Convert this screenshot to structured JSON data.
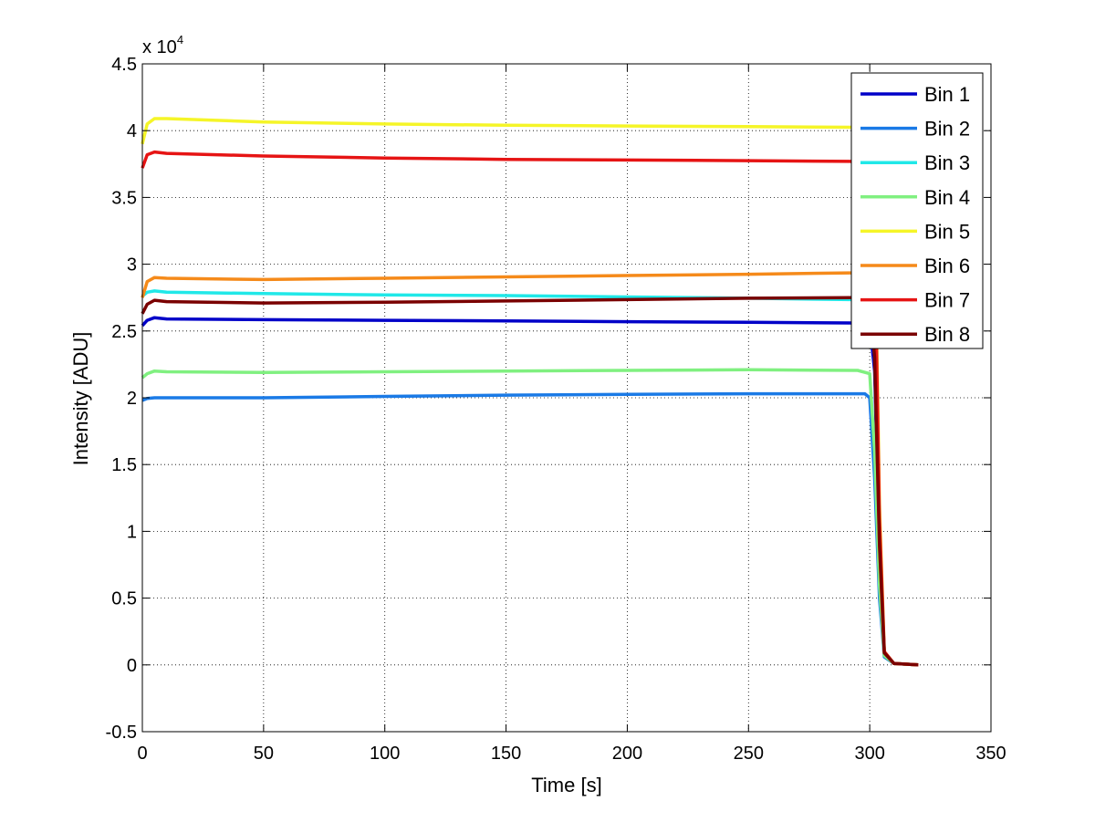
{
  "chart_data": {
    "type": "line",
    "title": "",
    "xlabel": "Time [s]",
    "ylabel": "Intensity [ADU]",
    "y_multiplier_label": "x 10",
    "y_multiplier_exponent": "4",
    "xlim": [
      0,
      350
    ],
    "ylim": [
      -0.5,
      4.5
    ],
    "x_ticks": [
      0,
      50,
      100,
      150,
      200,
      250,
      300,
      350
    ],
    "x_tick_labels": [
      "0",
      "50",
      "100",
      "150",
      "200",
      "250",
      "300",
      "350"
    ],
    "y_ticks": [
      -0.5,
      0,
      0.5,
      1,
      1.5,
      2,
      2.5,
      3,
      3.5,
      4,
      4.5
    ],
    "y_tick_labels": [
      "-0.5",
      "0",
      "0.5",
      "1",
      "1.5",
      "2",
      "2.5",
      "3",
      "3.5",
      "4",
      "4.5"
    ],
    "grid": true,
    "legend_position": "top-right",
    "series": [
      {
        "name": "Bin 1",
        "color": "#0000c8",
        "x": [
          0,
          2,
          5,
          10,
          50,
          100,
          150,
          200,
          250,
          292,
          300,
          302,
          304,
          306,
          310,
          320
        ],
        "y": [
          2.54,
          2.58,
          2.6,
          2.59,
          2.585,
          2.58,
          2.575,
          2.57,
          2.565,
          2.56,
          2.55,
          2.2,
          0.8,
          0.08,
          0.01,
          0.0
        ]
      },
      {
        "name": "Bin 2",
        "color": "#1a7ae6",
        "x": [
          0,
          2,
          5,
          10,
          50,
          100,
          150,
          200,
          250,
          298,
          300,
          302,
          304,
          306,
          310,
          320
        ],
        "y": [
          1.98,
          1.995,
          2.0,
          2.0,
          2.0,
          2.01,
          2.02,
          2.025,
          2.03,
          2.03,
          2.0,
          1.4,
          0.5,
          0.06,
          0.01,
          0.0
        ]
      },
      {
        "name": "Bin 3",
        "color": "#20e8e8",
        "x": [
          0,
          2,
          5,
          10,
          50,
          100,
          150,
          200,
          250,
          292,
          300,
          302,
          304,
          306,
          310,
          320
        ],
        "y": [
          2.76,
          2.79,
          2.8,
          2.79,
          2.78,
          2.77,
          2.765,
          2.755,
          2.745,
          2.735,
          2.72,
          2.3,
          0.9,
          0.09,
          0.01,
          0.0
        ]
      },
      {
        "name": "Bin 4",
        "color": "#80f080",
        "x": [
          0,
          2,
          5,
          10,
          50,
          100,
          150,
          200,
          250,
          295,
          300,
          302,
          304,
          306,
          310,
          320
        ],
        "y": [
          2.15,
          2.18,
          2.2,
          2.195,
          2.19,
          2.195,
          2.2,
          2.205,
          2.21,
          2.205,
          2.18,
          1.6,
          0.6,
          0.07,
          0.01,
          0.0
        ]
      },
      {
        "name": "Bin 5",
        "color": "#f5f528",
        "x": [
          0,
          2,
          5,
          10,
          50,
          100,
          150,
          200,
          250,
          292,
          300,
          302,
          304,
          306,
          310,
          320
        ],
        "y": [
          3.9,
          4.05,
          4.09,
          4.09,
          4.065,
          4.05,
          4.04,
          4.035,
          4.03,
          4.025,
          4.0,
          3.4,
          1.2,
          0.1,
          0.01,
          0.0
        ]
      },
      {
        "name": "Bin 6",
        "color": "#f58a1a",
        "x": [
          0,
          2,
          5,
          10,
          50,
          100,
          150,
          200,
          250,
          292,
          300,
          302,
          304,
          306,
          310,
          320
        ],
        "y": [
          2.75,
          2.87,
          2.9,
          2.895,
          2.885,
          2.895,
          2.905,
          2.915,
          2.925,
          2.935,
          2.9,
          2.4,
          0.9,
          0.09,
          0.01,
          0.0
        ]
      },
      {
        "name": "Bin 7",
        "color": "#e61414",
        "x": [
          0,
          2,
          5,
          10,
          50,
          100,
          150,
          200,
          250,
          292,
          300,
          302,
          304,
          306,
          310,
          320
        ],
        "y": [
          3.72,
          3.82,
          3.84,
          3.83,
          3.81,
          3.795,
          3.785,
          3.78,
          3.775,
          3.77,
          3.74,
          3.2,
          1.1,
          0.1,
          0.01,
          0.0
        ]
      },
      {
        "name": "Bin 8",
        "color": "#7a0000",
        "x": [
          0,
          2,
          5,
          10,
          50,
          100,
          150,
          200,
          250,
          292,
          300,
          302,
          304,
          306,
          310,
          320
        ],
        "y": [
          2.63,
          2.7,
          2.73,
          2.72,
          2.71,
          2.715,
          2.725,
          2.735,
          2.745,
          2.75,
          2.73,
          2.3,
          0.9,
          0.09,
          0.01,
          0.0
        ]
      }
    ]
  }
}
